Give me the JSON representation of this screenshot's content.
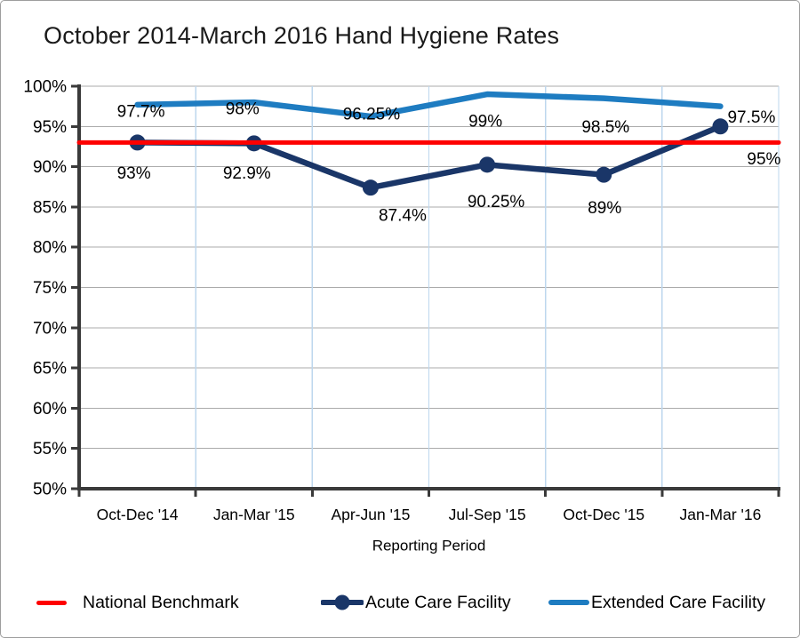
{
  "chart_data": {
    "type": "line",
    "title": "October 2014-March 2016 Hand Hygiene Rates",
    "xlabel": "Reporting Period",
    "ylabel": "",
    "categories": [
      "Oct-Dec '14",
      "Jan-Mar '15",
      "Apr-Jun '15",
      "Jul-Sep '15",
      "Oct-Dec '15",
      "Jan-Mar '16"
    ],
    "ylim": [
      50,
      100
    ],
    "ytick_step": 5,
    "yticks": [
      {
        "value": 100,
        "label": "100%"
      },
      {
        "value": 95,
        "label": "95%"
      },
      {
        "value": 90,
        "label": "90%"
      },
      {
        "value": 85,
        "label": "85%"
      },
      {
        "value": 80,
        "label": "80%"
      },
      {
        "value": 75,
        "label": "75%"
      },
      {
        "value": 70,
        "label": "70%"
      },
      {
        "value": 65,
        "label": "65%"
      },
      {
        "value": 60,
        "label": "60%"
      },
      {
        "value": 55,
        "label": "55%"
      },
      {
        "value": 50,
        "label": "50%"
      }
    ],
    "grid": {
      "horizontal": true,
      "vertical": true
    },
    "legend_position": "bottom",
    "series": [
      {
        "name": "National Benchmark",
        "color": "#FE0000",
        "benchmark": true,
        "marker": false,
        "line_width": 5,
        "values": [
          93,
          93,
          93,
          93,
          93,
          93
        ],
        "labels": []
      },
      {
        "name": "Acute Care Facility",
        "color": "#1A3668",
        "benchmark": false,
        "marker": true,
        "line_width": 6.5,
        "values": [
          93,
          92.9,
          87.4,
          90.25,
          89,
          95
        ],
        "labels": [
          "93%",
          "92.9%",
          "87.4%",
          "90.25%",
          "89%",
          "95%"
        ],
        "label_dx": [
          -4,
          -8,
          36,
          10,
          1,
          49
        ],
        "label_dy": [
          34,
          33,
          31,
          41,
          37,
          36
        ]
      },
      {
        "name": "Extended Care Facility",
        "color": "#1E7CC1",
        "benchmark": false,
        "marker": false,
        "line_width": 6.5,
        "values": [
          97.7,
          98,
          96.25,
          99,
          98.5,
          97.5
        ],
        "labels": [
          "97.7%",
          "98%",
          "96.25%",
          "99%",
          "98.5%",
          "97.5%"
        ],
        "label_dx": [
          4,
          -13,
          1,
          -2,
          2,
          35
        ],
        "label_dy": [
          7,
          7,
          -3,
          30,
          32,
          12
        ]
      }
    ],
    "colors": {
      "axis": "#3A3A3A",
      "gridline_h": "#ABABAB",
      "gridline_v": "#BDD7EE",
      "frame": "#9E9E9E",
      "text": "#000000"
    }
  }
}
